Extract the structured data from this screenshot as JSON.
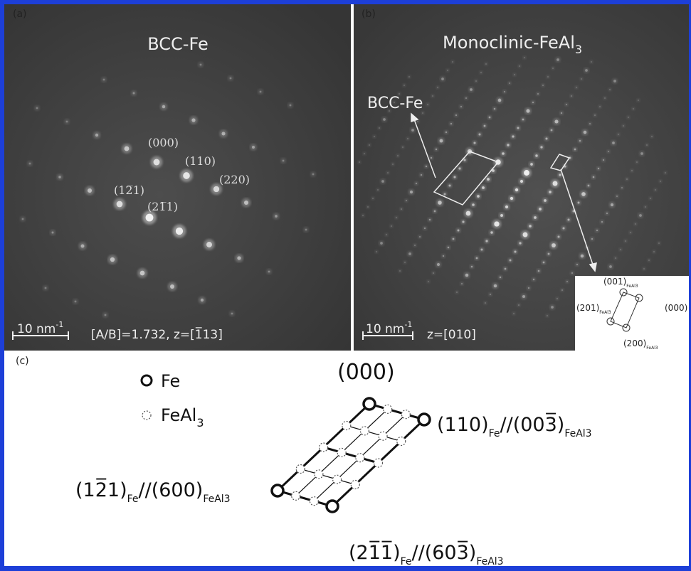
{
  "panel_a": {
    "letter": "(a)",
    "title": "BCC-Fe",
    "spot_labels": [
      "(000)",
      "(110)",
      "(220)",
      "(12̅1)",
      "(21̅1)"
    ],
    "scale_bar": {
      "text": "10 nm",
      "sup": "-1"
    },
    "zone": "[A/B]=1.732, z=[1̅13]"
  },
  "panel_b": {
    "letter": "(b)",
    "title": {
      "main": "Monoclinic-FeAl",
      "sub": "3"
    },
    "annotation": "BCC-Fe",
    "scale_bar": {
      "text": "10 nm",
      "sup": "-1"
    },
    "zone": "z=[010]",
    "inset": {
      "top": {
        "main": "(001)",
        "sub": "FeAl3"
      },
      "left": {
        "main": "(201)",
        "sub": "FeAl3"
      },
      "right": "(000)",
      "bottom": {
        "main": "(200)",
        "sub": "FeAl3"
      }
    }
  },
  "panel_c": {
    "letter": "(c)",
    "legend": [
      {
        "main": "Fe"
      },
      {
        "main": "FeAl",
        "sub": "3"
      }
    ],
    "origin": "(000)",
    "labels": [
      {
        "a": "(110)",
        "a_sub": "Fe",
        "b": "//(003̅)",
        "b_sub": "FeAl3"
      },
      {
        "a": "(12̅1)",
        "a_sub": "Fe",
        "b": "//(600)",
        "b_sub": "FeAl3"
      },
      {
        "a": "(21̅1̅)",
        "a_sub": "Fe",
        "b": "//(603̅)",
        "b_sub": "FeAl3"
      }
    ]
  }
}
